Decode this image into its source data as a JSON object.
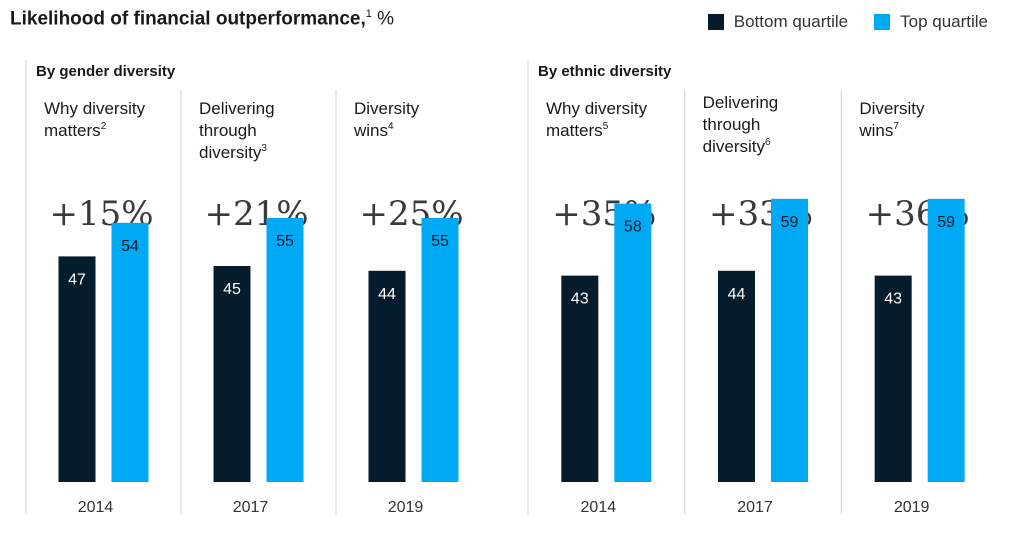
{
  "title": {
    "main": "Likelihood of financial outperformance,",
    "footnote": "1",
    "unit": " %"
  },
  "legend": [
    {
      "label": "Bottom quartile",
      "color": "#051c2c"
    },
    {
      "label": "Top quartile",
      "color": "#00a9f4"
    }
  ],
  "chart_data": {
    "type": "bar",
    "ylim": [
      0,
      60
    ],
    "groups": [
      {
        "title": "By gender diversity",
        "panels": [
          {
            "label_lines": [
              "Why diversity",
              "matters"
            ],
            "footnote": "2",
            "delta": "+15%",
            "year": "2014",
            "bottom": 47,
            "top": 54
          },
          {
            "label_lines": [
              "Delivering",
              "through",
              "diversity"
            ],
            "footnote": "3",
            "delta": "+21%",
            "year": "2017",
            "bottom": 45,
            "top": 55
          },
          {
            "label_lines": [
              "Diversity",
              "wins"
            ],
            "footnote": "4",
            "delta": "+25%",
            "year": "2019",
            "bottom": 44,
            "top": 55
          }
        ]
      },
      {
        "title": "By ethnic diversity",
        "panels": [
          {
            "label_lines": [
              "Why diversity",
              "matters"
            ],
            "footnote": "5",
            "delta": "+35%",
            "year": "2014",
            "bottom": 43,
            "top": 58
          },
          {
            "label_lines": [
              "Delivering",
              "through",
              "diversity"
            ],
            "footnote": "6",
            "delta": "+33%",
            "year": "2017",
            "bottom": 44,
            "top": 59
          },
          {
            "label_lines": [
              "Diversity",
              "wins"
            ],
            "footnote": "7",
            "delta": "+36%",
            "year": "2019",
            "bottom": 43,
            "top": 59
          }
        ]
      }
    ]
  }
}
